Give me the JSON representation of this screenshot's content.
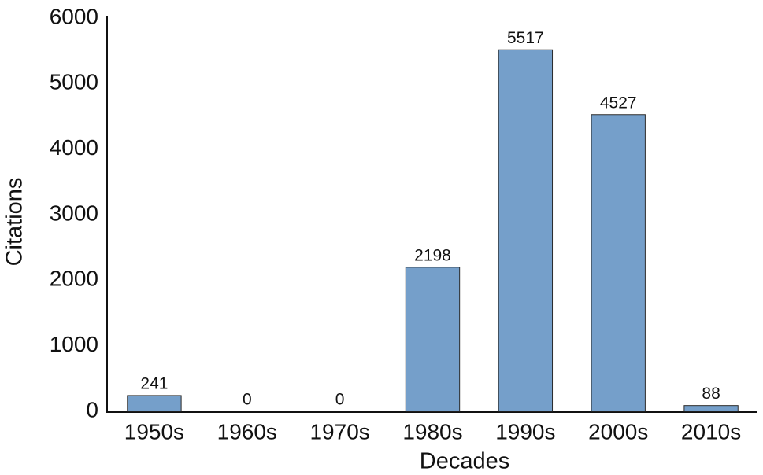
{
  "chart_data": {
    "type": "bar",
    "x_label": "Decades",
    "y_label": "Citations",
    "categories": [
      "1950s",
      "1960s",
      "1970s",
      "1980s",
      "1990s",
      "2000s",
      "2010s"
    ],
    "values": [
      241,
      0,
      0,
      2198,
      5517,
      4527,
      88
    ],
    "color": "#759fca",
    "ylim": [
      0,
      6000
    ],
    "yticks": [
      0,
      1000,
      2000,
      3000,
      4000,
      5000,
      6000
    ],
    "grid": false
  }
}
